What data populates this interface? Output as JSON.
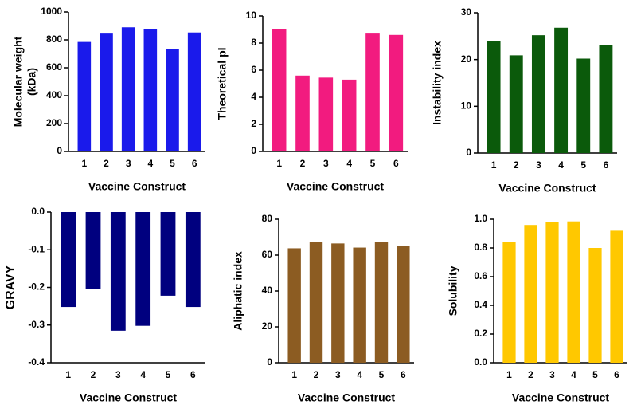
{
  "chart_data": [
    {
      "type": "bar",
      "ylabel": [
        "Molecular weight",
        "(kDa)"
      ],
      "xlabel": "Vaccine Construct",
      "categories": [
        "1",
        "2",
        "3",
        "4",
        "5",
        "6"
      ],
      "values": [
        785,
        845,
        890,
        878,
        733,
        853
      ],
      "color": "#1a1aeb",
      "ylim": [
        0,
        1000
      ],
      "yticks": [
        0,
        200,
        400,
        600,
        800,
        1000
      ]
    },
    {
      "type": "bar",
      "ylabel": "Theoretical pI",
      "xlabel": "Vaccine Construct",
      "categories": [
        "1",
        "2",
        "3",
        "4",
        "5",
        "6"
      ],
      "values": [
        9.05,
        5.6,
        5.45,
        5.3,
        8.7,
        8.6
      ],
      "color": "#f21b7f",
      "ylim": [
        0,
        10
      ],
      "yticks": [
        0,
        2,
        4,
        6,
        8,
        10
      ]
    },
    {
      "type": "bar",
      "ylabel": "Instability index",
      "xlabel": "Vaccine Construct",
      "categories": [
        "1",
        "2",
        "3",
        "4",
        "5",
        "6"
      ],
      "values": [
        24,
        20.9,
        25.2,
        26.8,
        20.2,
        23.1
      ],
      "color": "#0b5a0b",
      "ylim": [
        0,
        30
      ],
      "yticks": [
        0,
        10,
        20,
        30
      ]
    },
    {
      "type": "bar",
      "ylabel": "GRAVY",
      "xlabel": "Vaccine Construct",
      "categories": [
        "1",
        "2",
        "3",
        "4",
        "5",
        "6"
      ],
      "values": [
        -0.252,
        -0.205,
        -0.315,
        -0.302,
        -0.222,
        -0.252
      ],
      "color": "#00007f",
      "ylim": [
        -0.4,
        0
      ],
      "yticks": [
        {
          "value": 0,
          "label": "0.0"
        },
        -0.1,
        -0.2,
        -0.3,
        -0.4
      ]
    },
    {
      "type": "bar",
      "ylabel": "Aliphatic index",
      "xlabel": "Vaccine Construct",
      "categories": [
        "1",
        "2",
        "3",
        "4",
        "5",
        "6"
      ],
      "values": [
        63.8,
        67.5,
        66.5,
        64.2,
        67.3,
        65
      ],
      "color": "#8c5c22",
      "ylim": [
        0,
        80
      ],
      "yticks": [
        0,
        20,
        40,
        60,
        80
      ]
    },
    {
      "type": "bar",
      "ylabel": "Solubility",
      "xlabel": "Vaccine Construct",
      "categories": [
        "1",
        "2",
        "3",
        "4",
        "5",
        "6"
      ],
      "values": [
        0.84,
        0.96,
        0.98,
        0.985,
        0.8,
        0.92
      ],
      "color": "#ffc800",
      "ylim": [
        0,
        1
      ],
      "yticks": [
        {
          "value": 0,
          "label": "0.0"
        },
        0.2,
        0.4,
        0.6,
        0.8,
        {
          "value": 1,
          "label": "1.0"
        }
      ]
    }
  ]
}
